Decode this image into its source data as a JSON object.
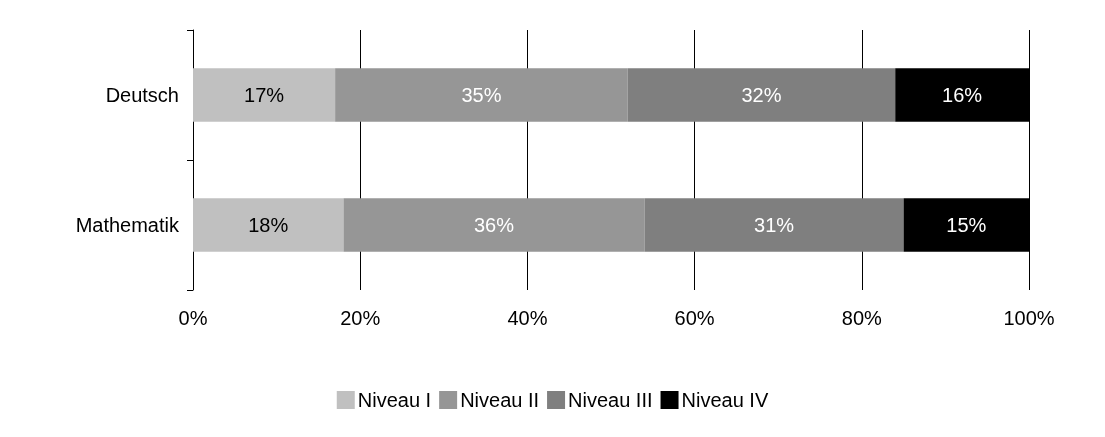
{
  "chart_data": {
    "type": "bar",
    "orientation": "horizontal",
    "stacked": true,
    "categories": [
      "Deutsch",
      "Mathematik"
    ],
    "series": [
      {
        "name": "Niveau I",
        "color": "#c0c0c0",
        "values": [
          17,
          18
        ],
        "value_labels": [
          "17%",
          "18%"
        ]
      },
      {
        "name": "Niveau II",
        "color": "#969696",
        "values": [
          35,
          36
        ],
        "value_labels": [
          "35%",
          "36%"
        ]
      },
      {
        "name": "Niveau III",
        "color": "#7f7f7f",
        "values": [
          32,
          31
        ],
        "value_labels": [
          "32%",
          "31%"
        ]
      },
      {
        "name": "Niveau IV",
        "color": "#000000",
        "values": [
          16,
          15
        ],
        "value_labels": [
          "16%",
          "15%"
        ]
      }
    ],
    "xlim": [
      0,
      100
    ],
    "xticks": [
      {
        "value": 0,
        "label": "0%"
      },
      {
        "value": 20,
        "label": "20%"
      },
      {
        "value": 40,
        "label": "40%"
      },
      {
        "value": 60,
        "label": "60%"
      },
      {
        "value": 80,
        "label": "80%"
      },
      {
        "value": 100,
        "label": "100%"
      }
    ],
    "grid": "x",
    "legend": "bottom"
  }
}
